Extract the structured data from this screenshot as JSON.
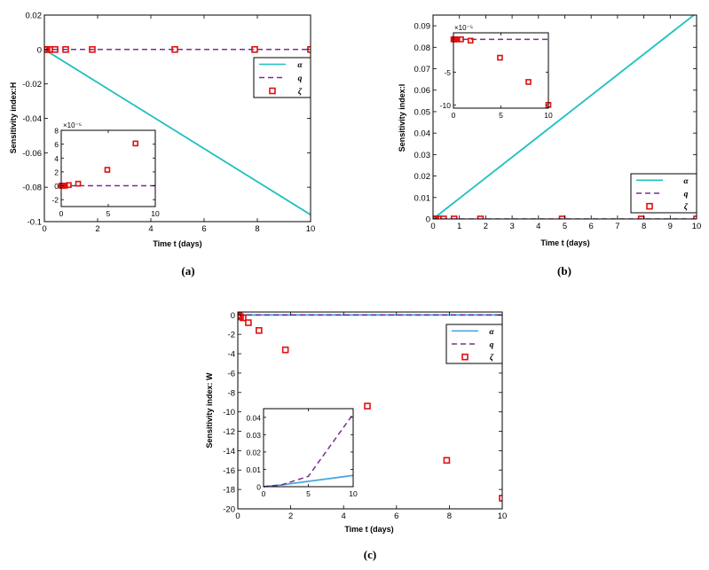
{
  "colors": {
    "alpha": "#20c0c0",
    "alpha_c": "#4aa8e0",
    "q": "#7a2e8e",
    "zeta": "#e01010",
    "axis": "#000000"
  },
  "legend_labels": [
    "α",
    "q",
    "ζ"
  ],
  "chart_data": [
    {
      "id": "a",
      "type": "line",
      "caption": "(a)",
      "xlabel": "Time t (days)",
      "ylabel": "Sensitivity index:H",
      "xlim": [
        0,
        10
      ],
      "ylim": [
        -0.1,
        0.02
      ],
      "xticks": [
        0,
        2,
        4,
        6,
        8,
        10
      ],
      "xtick_labels": [
        "0",
        "2",
        "4",
        "6",
        "8",
        "10"
      ],
      "yticks": [
        0.02,
        0,
        -0.02,
        -0.04,
        -0.06,
        -0.08,
        -0.1
      ],
      "ytick_labels": [
        "0.02",
        "0",
        "-0.02",
        "-0.04",
        "-0.06",
        "-0.08",
        "-0.1"
      ],
      "legend_position": "top-right",
      "series": [
        {
          "name": "α",
          "style": "solid",
          "x": [
            0,
            10
          ],
          "y": [
            0,
            -0.096
          ]
        },
        {
          "name": "q",
          "style": "dashed",
          "x": [
            0,
            10
          ],
          "y": [
            0,
            0
          ]
        },
        {
          "name": "ζ",
          "style": "marker",
          "x": [
            0,
            0.05,
            0.1,
            0.2,
            0.4,
            0.8,
            1.8,
            4.9,
            7.9,
            10
          ],
          "y": [
            0,
            0,
            0,
            0,
            0,
            0,
            0,
            0,
            0,
            0
          ]
        }
      ],
      "inset": {
        "xlim": [
          0,
          10
        ],
        "ylim": [
          -3,
          8
        ],
        "exponent_label": "×10⁻⁵",
        "xticks": [
          0,
          5,
          10
        ],
        "xtick_labels": [
          "0",
          "5",
          "10"
        ],
        "yticks": [
          8,
          6,
          4,
          2,
          0,
          -2
        ],
        "ytick_labels": [
          "8",
          "6",
          "4",
          "2",
          "0",
          "-2"
        ],
        "series": [
          {
            "name": "q",
            "style": "dashed",
            "x": [
              0,
              10
            ],
            "y": [
              0,
              0
            ]
          },
          {
            "name": "ζ",
            "style": "marker",
            "x": [
              0,
              0.1,
              0.2,
              0.4,
              0.8,
              1.8,
              4.9,
              7.9
            ],
            "y": [
              0,
              0,
              0,
              0,
              0.1,
              0.3,
              2.3,
              6.1
            ]
          }
        ]
      }
    },
    {
      "id": "b",
      "type": "line",
      "caption": "(b)",
      "xlabel": "Time t (days)",
      "ylabel": "Sensitivity index:I",
      "xlim": [
        0,
        10
      ],
      "ylim": [
        0,
        0.095
      ],
      "xticks": [
        0,
        1,
        2,
        3,
        4,
        5,
        6,
        7,
        8,
        9,
        10
      ],
      "xtick_labels": [
        "0",
        "1",
        "2",
        "3",
        "4",
        "5",
        "6",
        "7",
        "8",
        "9",
        "10"
      ],
      "yticks": [
        0,
        0.01,
        0.02,
        0.03,
        0.04,
        0.05,
        0.06,
        0.07,
        0.08,
        0.09
      ],
      "ytick_labels": [
        "0",
        "0.01",
        "0.02",
        "0.03",
        "0.04",
        "0.05",
        "0.06",
        "0.07",
        "0.08",
        "0.09"
      ],
      "legend_position": "bottom-right",
      "series": [
        {
          "name": "α",
          "style": "solid",
          "x": [
            0,
            10
          ],
          "y": [
            0,
            0.096
          ]
        },
        {
          "name": "q",
          "style": "dashed",
          "x": [
            0,
            10
          ],
          "y": [
            0,
            0
          ]
        },
        {
          "name": "ζ",
          "style": "marker",
          "x": [
            0,
            0.05,
            0.1,
            0.2,
            0.4,
            0.8,
            1.8,
            4.9,
            7.9,
            10
          ],
          "y": [
            0,
            0,
            0,
            0,
            0,
            0,
            0,
            0,
            0,
            0
          ]
        }
      ],
      "inset": {
        "xlim": [
          0,
          10
        ],
        "ylim": [
          -10.5,
          1
        ],
        "exponent_label": "×10⁻⁵",
        "xticks": [
          0,
          5,
          10
        ],
        "xtick_labels": [
          "0",
          "5",
          "10"
        ],
        "yticks": [
          -5,
          -10
        ],
        "ytick_labels": [
          "-5",
          "-10"
        ],
        "series": [
          {
            "name": "q",
            "style": "dashed",
            "x": [
              0,
              10
            ],
            "y": [
              0,
              0
            ]
          },
          {
            "name": "ζ",
            "style": "marker",
            "x": [
              0,
              0.1,
              0.2,
              0.4,
              0.8,
              1.8,
              4.9,
              7.9,
              10
            ],
            "y": [
              0,
              0,
              0,
              0,
              0,
              -0.2,
              -2.8,
              -6.5,
              -10
            ]
          }
        ]
      }
    },
    {
      "id": "c",
      "type": "line",
      "caption": "(c)",
      "xlabel": "Time t (days)",
      "ylabel": "Sensitivity index: W",
      "xlim": [
        0,
        10
      ],
      "ylim": [
        -20,
        0.3
      ],
      "xticks": [
        0,
        2,
        4,
        6,
        8,
        10
      ],
      "xtick_labels": [
        "0",
        "2",
        "4",
        "6",
        "8",
        "10"
      ],
      "yticks": [
        0,
        -2,
        -4,
        -6,
        -8,
        -10,
        -12,
        -14,
        -16,
        -18,
        -20
      ],
      "ytick_labels": [
        "0",
        "-2",
        "-4",
        "-6",
        "-8",
        "-10",
        "-12",
        "-14",
        "-16",
        "-18",
        "-20"
      ],
      "legend_position": "top-right",
      "series": [
        {
          "name": "α",
          "style": "solid",
          "x": [
            0,
            10
          ],
          "y": [
            0,
            0
          ]
        },
        {
          "name": "q",
          "style": "dashed",
          "x": [
            0,
            10
          ],
          "y": [
            0,
            0
          ]
        },
        {
          "name": "ζ",
          "style": "marker",
          "x": [
            0,
            0.05,
            0.1,
            0.2,
            0.4,
            0.8,
            1.8,
            4.9,
            7.9,
            10
          ],
          "y": [
            0,
            -0.1,
            -0.2,
            -0.3,
            -0.8,
            -1.6,
            -3.6,
            -9.4,
            -15,
            -18.9
          ]
        }
      ],
      "inset": {
        "xlim": [
          0,
          10
        ],
        "ylim": [
          0,
          0.045
        ],
        "exponent_label": "",
        "xticks": [
          0,
          5,
          10
        ],
        "xtick_labels": [
          "0",
          "5",
          "10"
        ],
        "yticks": [
          0,
          0.01,
          0.02,
          0.03,
          0.04
        ],
        "ytick_labels": [
          "0",
          "0.01",
          "0.02",
          "0.03",
          "0.04"
        ],
        "series": [
          {
            "name": "α",
            "style": "solid",
            "x": [
              0,
              2,
              10
            ],
            "y": [
              0,
              0.001,
              0.0065
            ]
          },
          {
            "name": "q",
            "style": "dashed",
            "x": [
              0,
              2,
              5,
              10
            ],
            "y": [
              0,
              0.001,
              0.006,
              0.042
            ]
          }
        ]
      }
    }
  ]
}
